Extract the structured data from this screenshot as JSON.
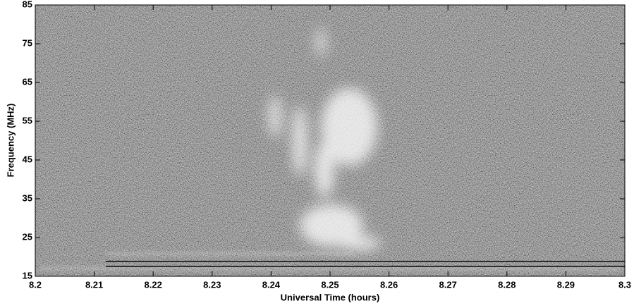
{
  "chart_data": {
    "type": "spectrogram",
    "x_label": "Universal Time (hours)",
    "y_label": "Frequency (MHz)",
    "xlim": [
      8.2,
      8.3
    ],
    "xticks": [
      8.2,
      8.21,
      8.22,
      8.23,
      8.24,
      8.25,
      8.26,
      8.27,
      8.28,
      8.29,
      8.3
    ],
    "ylim": [
      15,
      85
    ],
    "yticks": [
      15,
      25,
      35,
      45,
      55,
      65,
      75,
      85
    ]
  }
}
